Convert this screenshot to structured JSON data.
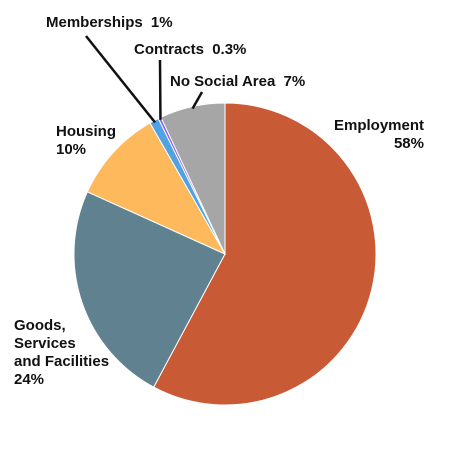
{
  "chart_data": {
    "type": "pie",
    "title": "",
    "start_angle_deg": 0,
    "direction": "clockwise",
    "colors": {
      "slice_stroke": "#ffffff",
      "leader_line": "#111111",
      "text": "#111111"
    },
    "slices": [
      {
        "label": "Employment",
        "value": 58,
        "value_label": "58%",
        "color": "#C85A35"
      },
      {
        "label": "Goods, Services and Facilities",
        "label_lines": [
          "Goods,",
          "Services",
          "and Facilities"
        ],
        "value": 24,
        "value_label": "24%",
        "color": "#5F8190"
      },
      {
        "label": "Housing",
        "value": 10,
        "value_label": "10%",
        "color": "#FDB95B"
      },
      {
        "label": "Memberships",
        "value": 1,
        "value_label": "1%",
        "color": "#4FA3E3"
      },
      {
        "label": "Contracts",
        "value": 0.3,
        "value_label": "0.3%",
        "color": "#8B5CF6"
      },
      {
        "label": "No Social Area",
        "value": 7,
        "value_label": "7%",
        "color": "#A6A6A6"
      }
    ]
  }
}
